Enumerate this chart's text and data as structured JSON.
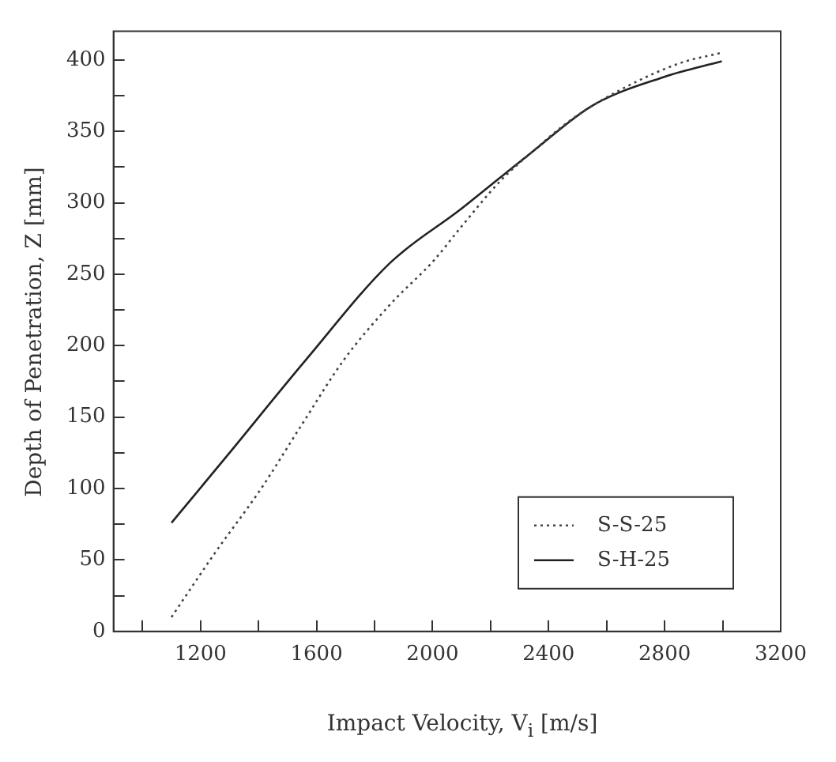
{
  "chart_data": {
    "type": "line",
    "xlabel": "Impact Velocity, V$_{i}$ [m/s]",
    "ylabel": "Depth of Penetration, Z [mm]",
    "xlim": [
      900,
      3200
    ],
    "xticks": [
      {
        "value": 1000,
        "label": null
      },
      1200,
      {
        "value": 1400,
        "label": null
      },
      1600,
      {
        "value": 1800,
        "label": null
      },
      2000,
      {
        "value": 2200,
        "label": null
      },
      2400,
      {
        "value": 2600,
        "label": null
      },
      2800,
      {
        "value": 3000,
        "label": null
      },
      3200
    ],
    "ylim": [
      0,
      420
    ],
    "yticks": [
      0,
      {
        "value": 25,
        "label": null
      },
      50,
      {
        "value": 75,
        "label": null
      },
      100,
      {
        "value": 125,
        "label": null
      },
      150,
      {
        "value": 175,
        "label": null
      },
      200,
      {
        "value": 225,
        "label": null
      },
      250,
      {
        "value": 275,
        "label": null
      },
      300,
      {
        "value": 325,
        "label": null
      },
      350,
      {
        "value": 375,
        "label": null
      },
      400
    ],
    "legend": "bottom right",
    "grid": false,
    "marker": "none",
    "series": [
      {
        "name": "S-S-25",
        "color": "#444444",
        "line_style": "dotted",
        "x": [
          1100,
          1250,
          1409,
          1550,
          1694,
          1850,
          2006,
          2094,
          2237,
          2340,
          2477,
          2666,
          2857,
          2997
        ],
        "values": [
          10,
          55,
          100,
          145,
          190,
          228,
          260,
          282,
          316,
          335,
          358,
          381,
          398,
          405
        ]
      },
      {
        "name": "S-H-25",
        "color": "#222222",
        "line_style": "solid",
        "x": [
          1100,
          1300,
          1563,
          1854,
          2094,
          2340,
          2551,
          2797,
          2997
        ],
        "values": [
          76,
          125,
          190,
          258,
          295,
          335,
          368,
          388,
          399
        ]
      }
    ]
  }
}
